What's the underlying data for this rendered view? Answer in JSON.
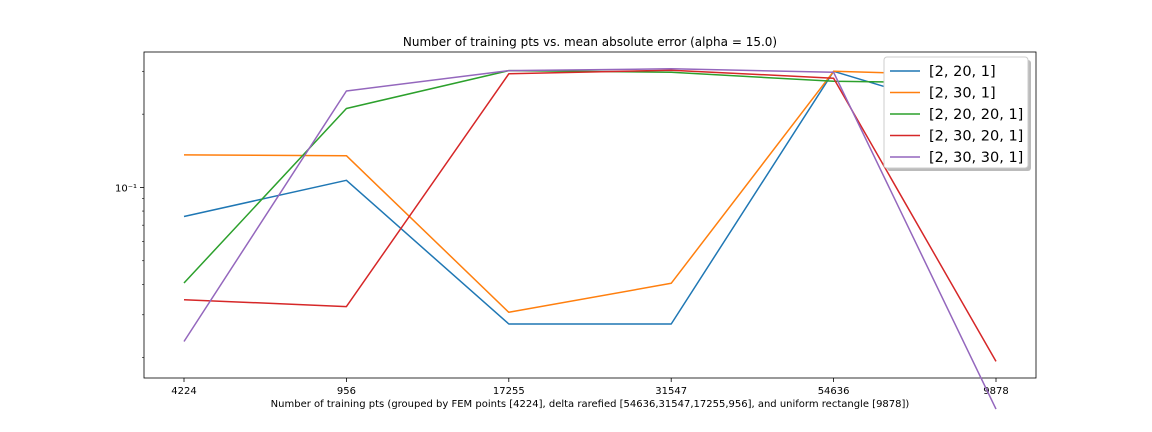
{
  "chart_data": {
    "type": "line",
    "title": "Number of training pts vs. mean absolute error (alpha = 15.0)",
    "xlabel": "Number of training pts (grouped by FEM points [4224], delta rarefied [54636,31547,17255,956], and uniform rectangle [9878])",
    "ylabel": "",
    "yscale": "log",
    "ylim": [
      0.0165,
      0.36
    ],
    "y_tick_labels": [
      "10⁻¹"
    ],
    "categories": [
      "4224",
      "956",
      "17255",
      "31547",
      "54636",
      "9878"
    ],
    "legend_position": "upper-right",
    "grid": false,
    "series": [
      {
        "name": "[2, 20, 1]",
        "color": "#1f77b4",
        "values": [
          0.076,
          0.107,
          0.0275,
          0.0275,
          0.3,
          0.189
        ]
      },
      {
        "name": "[2, 30, 1]",
        "color": "#ff7f0e",
        "values": [
          0.136,
          0.135,
          0.0307,
          0.0404,
          0.3,
          0.287
        ]
      },
      {
        "name": "[2, 20, 20, 1]",
        "color": "#2ca02c",
        "values": [
          0.0405,
          0.211,
          0.302,
          0.297,
          0.273,
          0.268
        ]
      },
      {
        "name": "[2, 30, 20, 1]",
        "color": "#d62728",
        "values": [
          0.0346,
          0.0324,
          0.293,
          0.303,
          0.281,
          0.0193
        ]
      },
      {
        "name": "[2, 30, 30, 1]",
        "color": "#9467bd",
        "values": [
          0.0233,
          0.249,
          0.302,
          0.307,
          0.297,
          0.0123
        ]
      }
    ]
  }
}
